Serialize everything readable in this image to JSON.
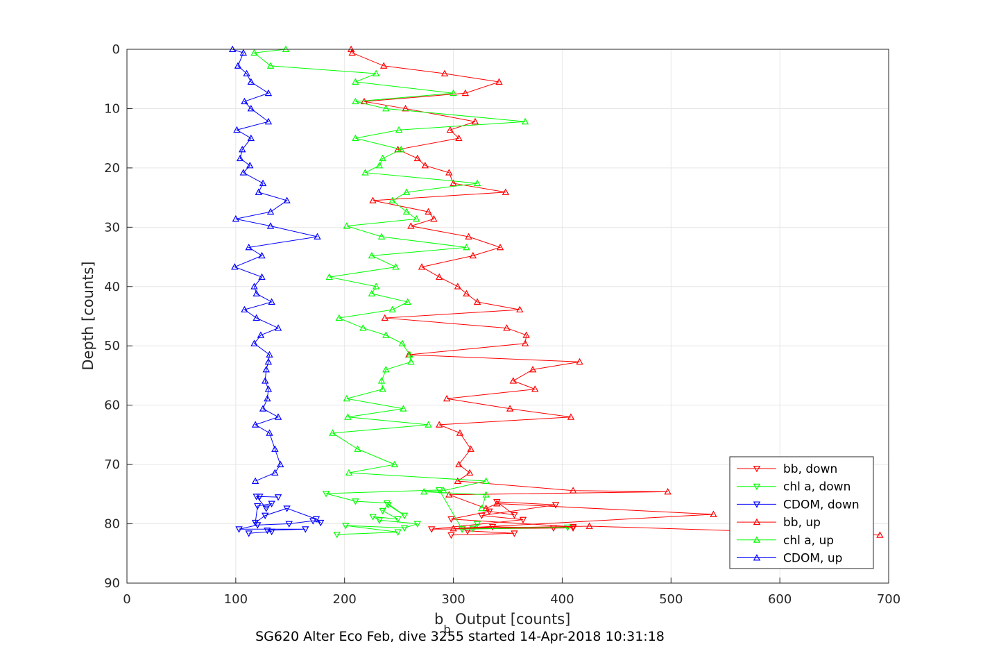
{
  "chart_data": {
    "type": "line",
    "xlabel_main": "b",
    "xlabel_sub": "b",
    "xlabel_rest": " Output [counts]",
    "ylabel": "Depth [counts]",
    "caption": "SG620 Alter Eco Feb, dive 3255 started 14-Apr-2018 10:31:18",
    "xlim": [
      0,
      700
    ],
    "ylim": [
      0,
      90
    ],
    "y_reversed": true,
    "grid": true,
    "legend_position": "bottom-right",
    "x_ticks": [
      0,
      100,
      200,
      300,
      400,
      500,
      600,
      700
    ],
    "y_ticks": [
      0,
      10,
      20,
      30,
      40,
      50,
      60,
      70,
      80,
      90
    ],
    "series": [
      {
        "name": "bb, down",
        "color": "#ff0000",
        "marker": "triangle-down",
        "x": [
          298,
          356,
          313,
          308,
          336,
          392,
          410,
          298,
          333,
          356,
          340,
          394,
          326,
          364,
          280,
          410
        ],
        "y": [
          81.9,
          81.6,
          81.2,
          80.9,
          80.5,
          80.7,
          80.5,
          79.2,
          77.9,
          78.5,
          76.3,
          76.8,
          78.6,
          79.3,
          80.9,
          80.7
        ]
      },
      {
        "name": "chl a, down",
        "color": "#00ff00",
        "marker": "triangle-down",
        "x": [
          193,
          249,
          201,
          255,
          267,
          232,
          226,
          249,
          235,
          240,
          255,
          239,
          210,
          183,
          287,
          308,
          405,
          318,
          322
        ],
        "y": [
          81.8,
          81.4,
          80.3,
          80.7,
          80.0,
          79.4,
          78.8,
          79.2,
          77.8,
          76.8,
          78.6,
          76.5,
          76.2,
          74.9,
          74.3,
          80.9,
          80.6,
          80.8,
          80.0
        ]
      },
      {
        "name": "CDOM, down",
        "color": "#0000ff",
        "marker": "triangle-down",
        "x": [
          112,
          133,
          129,
          164,
          103,
          120,
          149,
          171,
          178,
          174,
          147,
          127,
          118,
          120,
          133,
          128,
          119,
          139,
          122
        ],
        "y": [
          81.6,
          81.3,
          81.1,
          80.9,
          80.9,
          80.2,
          80.0,
          79.5,
          79.8,
          79.2,
          77.4,
          78.6,
          79.8,
          77.0,
          76.6,
          77.4,
          75.4,
          75.5,
          75.4
        ]
      },
      {
        "name": "bb, up",
        "color": "#ff0000",
        "marker": "triangle-up",
        "x": [
          206,
          207,
          236,
          292,
          342,
          311,
          218,
          256,
          320,
          297,
          305,
          249,
          267,
          274,
          296,
          300,
          348,
          226,
          277,
          282,
          261,
          314,
          343,
          318,
          271,
          287,
          304,
          312,
          322,
          361,
          237,
          349,
          367,
          366,
          259,
          416,
          373,
          355,
          375,
          294,
          352,
          408,
          287,
          306,
          316,
          305,
          315,
          304,
          410,
          497,
          296,
          330,
          340,
          539,
          300,
          425,
          692
        ],
        "y": [
          0.0,
          0.6,
          2.8,
          4.1,
          5.5,
          7.4,
          8.8,
          10.0,
          12.2,
          13.6,
          15.0,
          16.9,
          18.4,
          19.6,
          20.8,
          22.6,
          24.1,
          25.5,
          27.4,
          28.6,
          29.8,
          31.6,
          33.4,
          34.8,
          36.7,
          38.4,
          40.0,
          41.2,
          42.6,
          43.9,
          45.3,
          47.0,
          48.2,
          49.6,
          51.5,
          52.7,
          54.0,
          55.9,
          57.3,
          58.9,
          60.6,
          62.0,
          63.3,
          64.7,
          67.4,
          70.0,
          71.4,
          72.8,
          74.4,
          74.6,
          75.1,
          77.4,
          76.6,
          78.4,
          80.8,
          80.4,
          81.9
        ]
      },
      {
        "name": "chl a, up",
        "color": "#00ff00",
        "marker": "triangle-up",
        "x": [
          146,
          117,
          132,
          229,
          210,
          300,
          210,
          238,
          366,
          250,
          210,
          252,
          235,
          232,
          219,
          322,
          257,
          244,
          257,
          266,
          202,
          234,
          312,
          225,
          247,
          186,
          229,
          225,
          258,
          244,
          195,
          217,
          238,
          253,
          260,
          261,
          238,
          234,
          235,
          202,
          254,
          203,
          277,
          189,
          212,
          246,
          204,
          330,
          291,
          273,
          330,
          326
        ],
        "y": [
          0.0,
          0.6,
          2.8,
          4.1,
          5.5,
          7.4,
          8.8,
          10.0,
          12.2,
          13.6,
          15.0,
          16.9,
          18.4,
          19.6,
          20.8,
          22.6,
          24.1,
          25.5,
          27.4,
          28.6,
          29.8,
          31.6,
          33.4,
          34.8,
          36.7,
          38.4,
          40.0,
          41.2,
          42.6,
          43.9,
          45.3,
          47.0,
          48.2,
          49.6,
          51.5,
          52.7,
          54.0,
          55.9,
          57.3,
          58.9,
          60.6,
          62.0,
          63.3,
          64.7,
          67.4,
          70.0,
          71.4,
          72.8,
          74.4,
          74.6,
          75.1,
          77.4
        ]
      },
      {
        "name": "CDOM, up",
        "color": "#0000ff",
        "marker": "triangle-up",
        "x": [
          97,
          107,
          102,
          110,
          114,
          130,
          108,
          114,
          130,
          101,
          114,
          106,
          104,
          113,
          107,
          125,
          121,
          147,
          132,
          100,
          132,
          175,
          112,
          124,
          99,
          124,
          117,
          119,
          133,
          108,
          119,
          139,
          123,
          117,
          131,
          130,
          128,
          127,
          130,
          129,
          125,
          139,
          118,
          131,
          136,
          141,
          136,
          118
        ],
        "y": [
          0.0,
          0.6,
          2.8,
          4.1,
          5.5,
          7.4,
          8.8,
          10.0,
          12.2,
          13.6,
          15.0,
          16.9,
          18.4,
          19.6,
          20.8,
          22.6,
          24.1,
          25.5,
          27.4,
          28.6,
          29.8,
          31.6,
          33.4,
          34.8,
          36.7,
          38.4,
          40.0,
          41.2,
          42.6,
          43.9,
          45.3,
          47.0,
          48.2,
          49.6,
          51.5,
          52.7,
          54.0,
          55.9,
          57.3,
          58.9,
          60.6,
          62.0,
          63.3,
          64.7,
          67.4,
          70.0,
          71.4,
          72.8
        ]
      }
    ]
  }
}
